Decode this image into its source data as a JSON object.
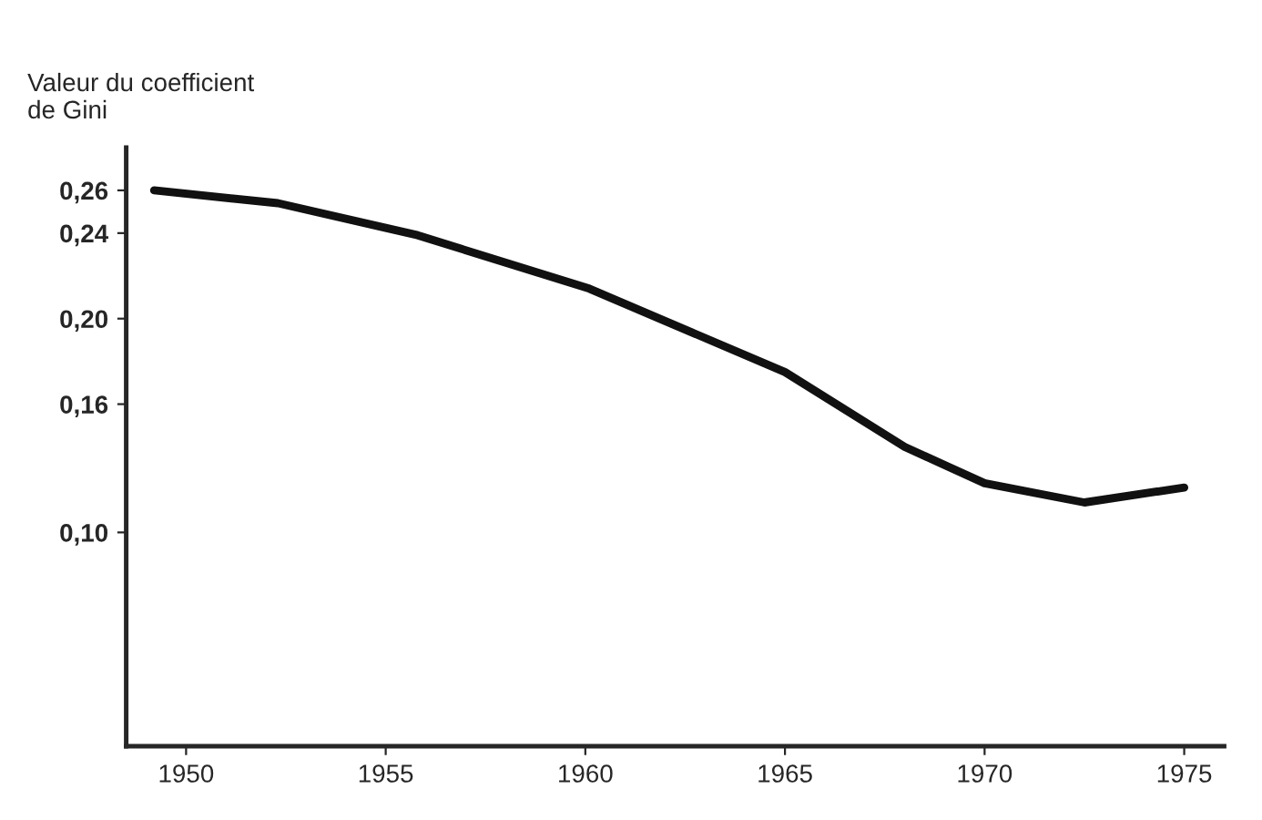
{
  "chart_data": {
    "type": "line",
    "ylabel": "Valeur du coefficient\nde Gini",
    "x": [
      1949.2,
      1952.3,
      1955.8,
      1960.1,
      1965,
      1968,
      1970,
      1972.5,
      1975
    ],
    "series": [
      {
        "color": "#111111",
        "values": [
          0.26,
          0.254,
          0.239,
          0.214,
          0.175,
          0.14,
          0.123,
          0.114,
          0.121
        ]
      }
    ],
    "xlim": [
      1948.5,
      1976
    ],
    "xticks": [
      1950,
      1955,
      1960,
      1965,
      1970,
      1975
    ],
    "ylim": [
      0,
      0.28
    ],
    "yticks": [
      {
        "value": 0.1,
        "label": "0,10"
      },
      {
        "value": 0.16,
        "label": "0,16"
      },
      {
        "value": 0.2,
        "label": "0,20"
      },
      {
        "value": 0.24,
        "label": "0,24"
      },
      {
        "value": 0.26,
        "label": "0,26"
      }
    ],
    "grid": false,
    "marker": "none",
    "line_style": "solid"
  }
}
